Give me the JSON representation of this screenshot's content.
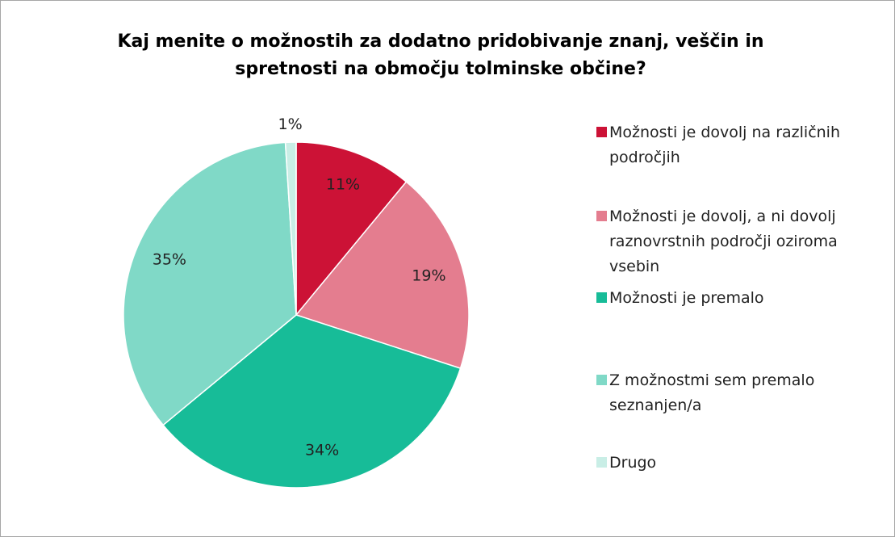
{
  "chart_data": {
    "type": "pie",
    "title": "Kaj menite o možnostih za dodatno pridobivanje znanj, veščin in spretnosti na območju tolminske občine?",
    "categories": [
      "Možnosti je dovolj na različnih področjih",
      "Možnosti je dovolj, a ni dovolj raznovrstnih področji oziroma vsebin",
      "Možnosti je premalo",
      "Z možnostmi sem premalo seznanjen/a",
      "Drugo"
    ],
    "values": [
      11,
      19,
      34,
      35,
      1
    ],
    "value_labels": [
      "11%",
      "19%",
      "34%",
      "35%",
      "1%"
    ],
    "colors": [
      "#cc1236",
      "#e47d8f",
      "#17bc98",
      "#80d9c7",
      "#c9eee6"
    ],
    "legend": "right"
  }
}
